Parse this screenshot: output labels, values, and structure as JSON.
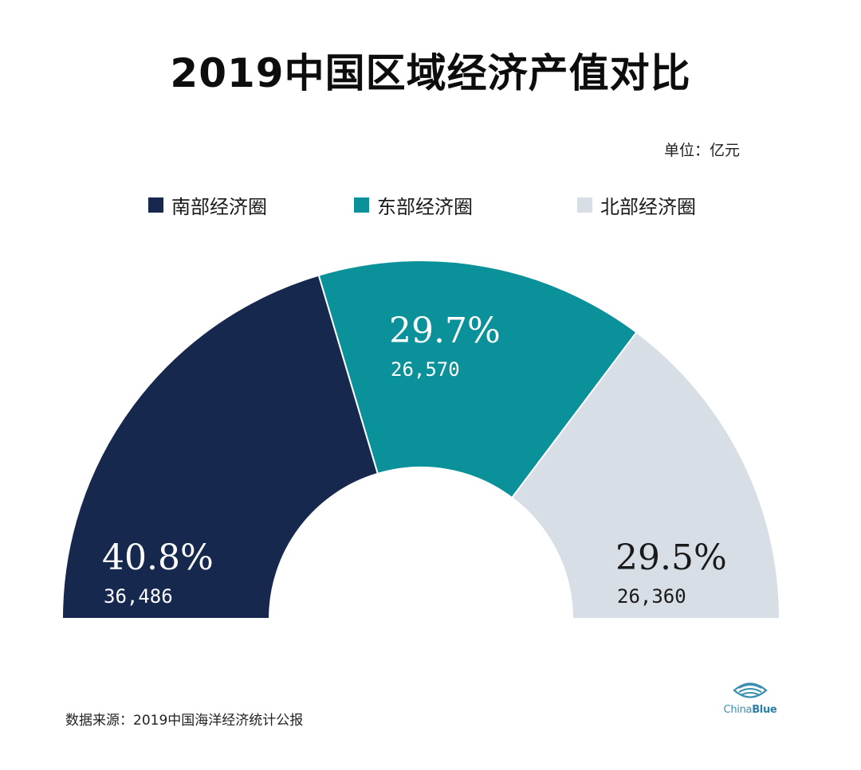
{
  "title": "2019中国区域经济产值对比",
  "unit": "单位：亿元",
  "source": "数据来源：2019中国海洋经济统计公报",
  "logo": {
    "name_light": "China",
    "name_bold": "Blue",
    "icon": "fish-eye-icon"
  },
  "chart_data": {
    "type": "pie",
    "variant": "semi-donut",
    "title": "2019中国区域经济产值对比",
    "unit": "亿元",
    "legend_position": "top",
    "categories": [
      "南部经济圈",
      "东部经济圈",
      "北部经济圈"
    ],
    "values": [
      36486,
      26570,
      26360
    ],
    "value_labels": [
      "36,486",
      "26,570",
      "26,360"
    ],
    "percent_labels": [
      "40.8%",
      "29.7%",
      "29.5%"
    ],
    "percents": [
      40.8,
      29.7,
      29.5
    ],
    "colors": [
      "#16284d",
      "#0a9199",
      "#d7dee5"
    ],
    "label_colors": [
      "#ffffff",
      "#ffffff",
      "#1a1a1a"
    ]
  }
}
